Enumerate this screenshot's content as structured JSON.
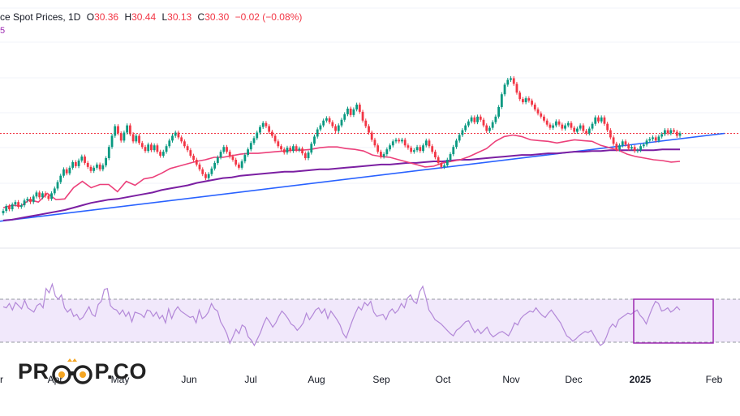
{
  "legend": {
    "title": "ce Spot Prices, 1D",
    "o_label": "O",
    "o_value": "30.36",
    "h_label": "H",
    "h_value": "30.44",
    "l_label": "L",
    "l_value": "30.13",
    "c_label": "C",
    "c_value": "30.30",
    "change": "−0.02 (−0.08%)",
    "second_line": "5"
  },
  "watermark": {
    "part1": "PR",
    "part2": "P.CO"
  },
  "colors": {
    "up": "#089981",
    "down": "#f23645",
    "ma_short": "#ec407a",
    "ma_long": "#7b1fa2",
    "trendline": "#2962ff",
    "rsi": "#b388d8",
    "rsi_band": "#f1e8fb",
    "highlight_box": "#9c27b0"
  },
  "chart_data": {
    "type": "line",
    "title": "",
    "x_labels": [
      "r",
      "Apr",
      "May",
      "Jun",
      "Jul",
      "Aug",
      "Sep",
      "Oct",
      "Nov",
      "Dec",
      "2025",
      "Feb"
    ],
    "price_panel": {
      "series": [
        {
          "values": [
            28.6,
            28.9,
            28.8,
            29.6,
            29.3,
            30.4,
            29.6,
            29.7,
            31.1,
            31.9,
            31.1,
            31.5,
            31.5,
            30.6,
            31.9,
            31.4,
            32.2,
            32.4,
            32.9,
            33.5,
            33.8,
            34.1,
            34.4,
            34.6,
            34.9,
            34.9,
            35.1,
            35.3,
            35.4,
            35.4,
            35.5,
            35.6,
            35.7,
            35.8,
            35.8,
            35.9,
            36.1,
            36.2,
            36.2,
            36.0,
            35.9,
            35.7,
            35.2,
            35.0,
            34.9,
            34.6,
            34.3,
            34.0,
            33.7,
            33.8,
            34.2,
            34.4,
            34.6,
            35.0,
            35.5,
            36.0,
            36.9,
            37.5,
            37.7,
            37.5,
            37.1,
            37.0,
            36.9,
            36.7,
            36.9,
            37.1,
            37.0,
            36.9,
            36.4,
            36.1,
            35.8,
            35.3,
            35.0,
            34.8,
            34.6,
            34.5,
            34.3,
            34.4
          ]
        },
        {
          "values": [
            27.0,
            27.1,
            27.3,
            27.5,
            27.7,
            27.9,
            28.1,
            28.3,
            28.6,
            28.9,
            29.2,
            29.4,
            29.6,
            29.7,
            29.9,
            30.1,
            30.3,
            30.5,
            30.8,
            31.0,
            31.2,
            31.4,
            31.7,
            31.9,
            32.1,
            32.3,
            32.4,
            32.6,
            32.7,
            32.8,
            32.9,
            33.0,
            33.1,
            33.1,
            33.2,
            33.3,
            33.4,
            33.4,
            33.5,
            33.6,
            33.7,
            33.8,
            33.9,
            34.0,
            34.0,
            34.1,
            34.2,
            34.2,
            34.3,
            34.4,
            34.4,
            34.5,
            34.6,
            34.6,
            34.7,
            34.8,
            34.9,
            35.0,
            35.1,
            35.2,
            35.2,
            35.3,
            35.4,
            35.4,
            35.5,
            35.6,
            35.6,
            35.7,
            35.7,
            35.8,
            35.8,
            35.8,
            35.8,
            35.8,
            35.8,
            35.9,
            35.9,
            35.9
          ]
        }
      ],
      "candles": [
        28.2,
        28.8,
        28.4,
        29.0,
        29.3,
        28.7,
        28.9,
        29.5,
        29.7,
        29.3,
        30.0,
        30.5,
        29.9,
        30.4,
        30.1,
        29.7,
        30.4,
        31.0,
        31.8,
        32.6,
        33.4,
        32.9,
        33.6,
        34.3,
        33.8,
        34.5,
        35.0,
        34.2,
        33.7,
        33.2,
        33.6,
        34.0,
        33.4,
        33.9,
        34.8,
        36.2,
        37.6,
        38.8,
        37.9,
        37.0,
        38.0,
        38.9,
        37.8,
        36.9,
        37.6,
        36.7,
        36.2,
        35.7,
        36.5,
        35.8,
        36.4,
        35.6,
        35.1,
        35.6,
        36.3,
        37.0,
        37.6,
        38.0,
        37.4,
        36.9,
        36.3,
        35.8,
        35.1,
        34.6,
        34.0,
        33.4,
        32.8,
        32.3,
        32.8,
        33.5,
        34.2,
        34.9,
        35.6,
        36.2,
        35.6,
        35.0,
        34.6,
        34.0,
        33.6,
        34.4,
        35.2,
        35.9,
        36.7,
        37.3,
        38.0,
        38.7,
        39.2,
        38.8,
        38.1,
        37.6,
        36.9,
        36.3,
        35.9,
        35.5,
        36.1,
        35.7,
        36.3,
        35.8,
        36.0,
        35.4,
        34.8,
        35.5,
        36.6,
        37.5,
        38.4,
        38.9,
        39.5,
        39.8,
        39.3,
        38.8,
        38.2,
        38.9,
        39.6,
        40.3,
        41.0,
        40.2,
        40.9,
        41.5,
        40.6,
        39.5,
        38.8,
        38.0,
        37.1,
        36.4,
        35.6,
        35.0,
        35.3,
        35.9,
        36.4,
        36.9,
        37.1,
        36.9,
        37.1,
        36.4,
        36.1,
        35.6,
        35.8,
        36.2,
        35.7,
        36.4,
        37.0,
        36.3,
        35.6,
        34.9,
        34.2,
        33.7,
        33.9,
        34.6,
        35.3,
        36.2,
        37.0,
        37.7,
        38.3,
        38.9,
        39.4,
        39.9,
        39.3,
        40.0,
        39.6,
        38.9,
        38.2,
        38.6,
        39.3,
        40.0,
        41.2,
        42.8,
        44.0,
        44.6,
        44.8,
        44.1,
        43.0,
        42.2,
        41.8,
        42.3,
        42.0,
        41.5,
        40.9,
        40.4,
        40.0,
        39.5,
        39.0,
        38.6,
        38.9,
        39.4,
        39.0,
        38.5,
        38.9,
        39.2,
        38.6,
        38.1,
        38.5,
        38.9,
        38.2,
        37.9,
        38.5,
        39.1,
        39.9,
        39.4,
        39.9,
        39.1,
        38.3,
        37.4,
        36.6,
        35.9,
        36.4,
        36.9,
        36.5,
        36.0,
        36.2,
        35.7,
        35.8,
        36.3,
        36.5,
        37.0,
        37.2,
        37.4,
        37.0,
        37.5,
        37.8,
        38.3,
        37.9,
        38.3,
        38.1,
        37.6,
        37.9
      ]
    },
    "rsi_panel": {
      "band": [
        30,
        70
      ],
      "values": [
        63,
        62,
        66,
        60,
        67,
        64,
        61,
        69,
        62,
        60,
        58,
        64,
        66,
        62,
        80,
        76,
        84,
        73,
        70,
        74,
        62,
        58,
        61,
        54,
        56,
        51,
        53,
        58,
        63,
        56,
        54,
        65,
        68,
        79,
        80,
        64,
        61,
        60,
        56,
        60,
        54,
        58,
        49,
        58,
        57,
        56,
        53,
        60,
        59,
        54,
        58,
        52,
        55,
        48,
        61,
        52,
        59,
        63,
        59,
        57,
        55,
        53,
        54,
        48,
        60,
        52,
        54,
        58,
        66,
        61,
        59,
        49,
        44,
        38,
        29,
        35,
        42,
        38,
        46,
        44,
        35,
        32,
        27,
        33,
        39,
        47,
        53,
        49,
        44,
        48,
        54,
        59,
        56,
        52,
        47,
        45,
        41,
        44,
        48,
        57,
        51,
        55,
        60,
        62,
        57,
        61,
        52,
        59,
        55,
        51,
        46,
        38,
        34,
        42,
        50,
        57,
        63,
        60,
        67,
        64,
        68,
        58,
        54,
        55,
        56,
        51,
        58,
        61,
        57,
        60,
        66,
        62,
        71,
        74,
        68,
        66,
        77,
        82,
        72,
        60,
        56,
        51,
        49,
        47,
        44,
        41,
        38,
        36,
        41,
        43,
        46,
        49,
        50,
        44,
        39,
        42,
        38,
        41,
        44,
        38,
        35,
        37,
        39,
        40,
        38,
        36,
        41,
        48,
        46,
        52,
        55,
        57,
        59,
        58,
        62,
        58,
        55,
        53,
        57,
        60,
        56,
        52,
        48,
        42,
        36,
        34,
        31,
        33,
        36,
        38,
        40,
        39,
        41,
        36,
        31,
        27,
        29,
        35,
        43,
        47,
        44,
        51,
        53,
        55,
        57,
        56,
        58,
        60,
        55,
        52,
        47,
        55,
        62,
        68,
        66,
        59,
        60,
        62,
        58,
        60,
        63,
        60
      ]
    }
  }
}
